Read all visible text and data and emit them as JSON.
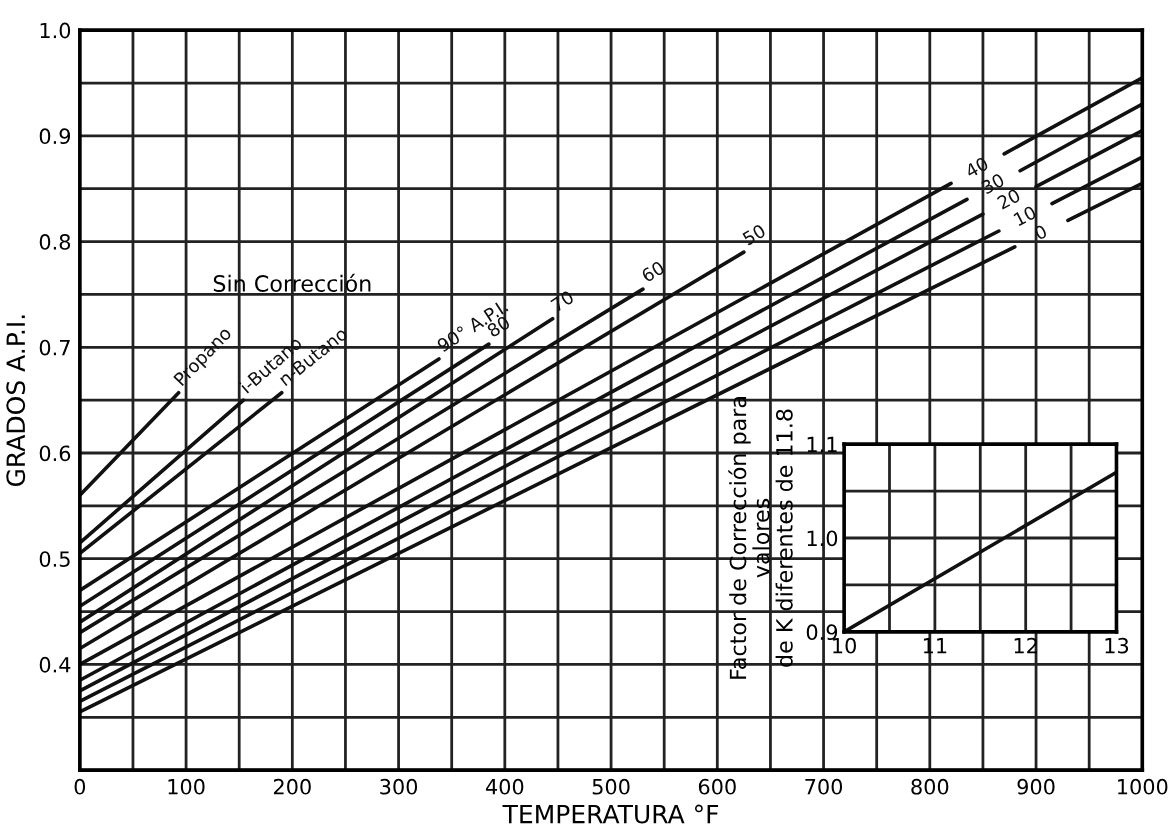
{
  "chart_data": [
    {
      "type": "line",
      "xlabel": "TEMPERATURA °F",
      "ylabel": "GRADOS A.P.I.",
      "xlim": [
        0,
        1000
      ],
      "ylim": [
        0.3,
        1.0
      ],
      "xticks": [
        0,
        {
          "value": 50,
          "label": null
        },
        100,
        {
          "value": 150,
          "label": null
        },
        200,
        {
          "value": 250,
          "label": null
        },
        300,
        {
          "value": 350,
          "label": null
        },
        400,
        {
          "value": 450,
          "label": null
        },
        500,
        {
          "value": 550,
          "label": null
        },
        600,
        {
          "value": 650,
          "label": null
        },
        700,
        {
          "value": 750,
          "label": null
        },
        800,
        {
          "value": 850,
          "label": null
        },
        900,
        {
          "value": 950,
          "label": null
        },
        1000
      ],
      "yticks": [
        {
          "value": 0.3,
          "label": null
        },
        {
          "value": 0.35,
          "label": null
        },
        0.4,
        {
          "value": 0.45,
          "label": null
        },
        0.5,
        {
          "value": 0.55,
          "label": null
        },
        0.6,
        {
          "value": 0.65,
          "label": null
        },
        0.7,
        {
          "value": 0.75,
          "label": null
        },
        0.8,
        {
          "value": 0.85,
          "label": null
        },
        0.9,
        {
          "value": 0.95,
          "label": null
        },
        {
          "value": 1.0,
          "label": "1.0"
        }
      ],
      "grid": true,
      "legend": false,
      "marker": "none",
      "line_style": "solid",
      "annotations": [
        "Sin Corrección"
      ],
      "series": [
        {
          "name": "Propano",
          "color": "#111111",
          "x": [
            0,
            93
          ],
          "values": [
            0.56,
            0.657
          ]
        },
        {
          "name": "i-Butano",
          "color": "#111111",
          "x": [
            0,
            154
          ],
          "values": [
            0.515,
            0.65
          ]
        },
        {
          "name": "n-Butano",
          "color": "#111111",
          "x": [
            0,
            190
          ],
          "values": [
            0.505,
            0.657
          ]
        },
        {
          "name": "90° A.P.I.",
          "color": "#111111",
          "x": [
            0,
            338
          ],
          "values": [
            0.47,
            0.689
          ]
        },
        {
          "name": "80",
          "color": "#111111",
          "x": [
            0,
            385
          ],
          "values": [
            0.455,
            0.703
          ]
        },
        {
          "name": "70",
          "color": "#111111",
          "x": [
            0,
            445
          ],
          "values": [
            0.44,
            0.727
          ]
        },
        {
          "name": "60",
          "color": "#111111",
          "x": [
            0,
            530
          ],
          "values": [
            0.43,
            0.755
          ]
        },
        {
          "name": "50",
          "color": "#111111",
          "x": [
            0,
            625
          ],
          "values": [
            0.415,
            0.79
          ]
        },
        {
          "name": "40",
          "color": "#111111",
          "x": [
            0,
            820,
            845,
            870,
            1000
          ],
          "values": [
            0.4,
            0.855,
            null,
            0.883,
            0.955
          ]
        },
        {
          "name": "30",
          "color": "#111111",
          "x": [
            0,
            835,
            860,
            885,
            1000
          ],
          "values": [
            0.385,
            0.84,
            null,
            0.867,
            0.93
          ]
        },
        {
          "name": "20",
          "color": "#111111",
          "x": [
            0,
            850,
            875,
            900,
            1000
          ],
          "values": [
            0.375,
            0.826,
            null,
            0.852,
            0.905
          ]
        },
        {
          "name": "10",
          "color": "#111111",
          "x": [
            0,
            865,
            890,
            915,
            1000
          ],
          "values": [
            0.365,
            0.81,
            null,
            0.836,
            0.88
          ]
        },
        {
          "name": "0",
          "color": "#111111",
          "x": [
            0,
            880,
            905,
            930,
            1000
          ],
          "values": [
            0.355,
            0.795,
            null,
            0.82,
            0.855
          ]
        }
      ]
    },
    {
      "type": "line",
      "ylabel": "Factor de Corrección para\nvalores\nde K diferentes de 11.8",
      "xlim": [
        10,
        13
      ],
      "ylim": [
        0.9,
        1.1
      ],
      "xticks": [
        10,
        {
          "value": 10.5,
          "label": null
        },
        11,
        {
          "value": 11.5,
          "label": null
        },
        12,
        {
          "value": 12.5,
          "label": null
        },
        13
      ],
      "yticks": [
        0.9,
        {
          "value": 0.95,
          "label": null
        },
        {
          "value": 1.0,
          "label": "1.0"
        },
        {
          "value": 1.05,
          "label": null
        },
        1.1
      ],
      "grid": true,
      "legend": false,
      "marker": "none",
      "line_style": "solid",
      "series": [
        {
          "color": "#111111",
          "x": [
            10,
            13
          ],
          "values": [
            0.9,
            1.07
          ]
        }
      ]
    }
  ]
}
